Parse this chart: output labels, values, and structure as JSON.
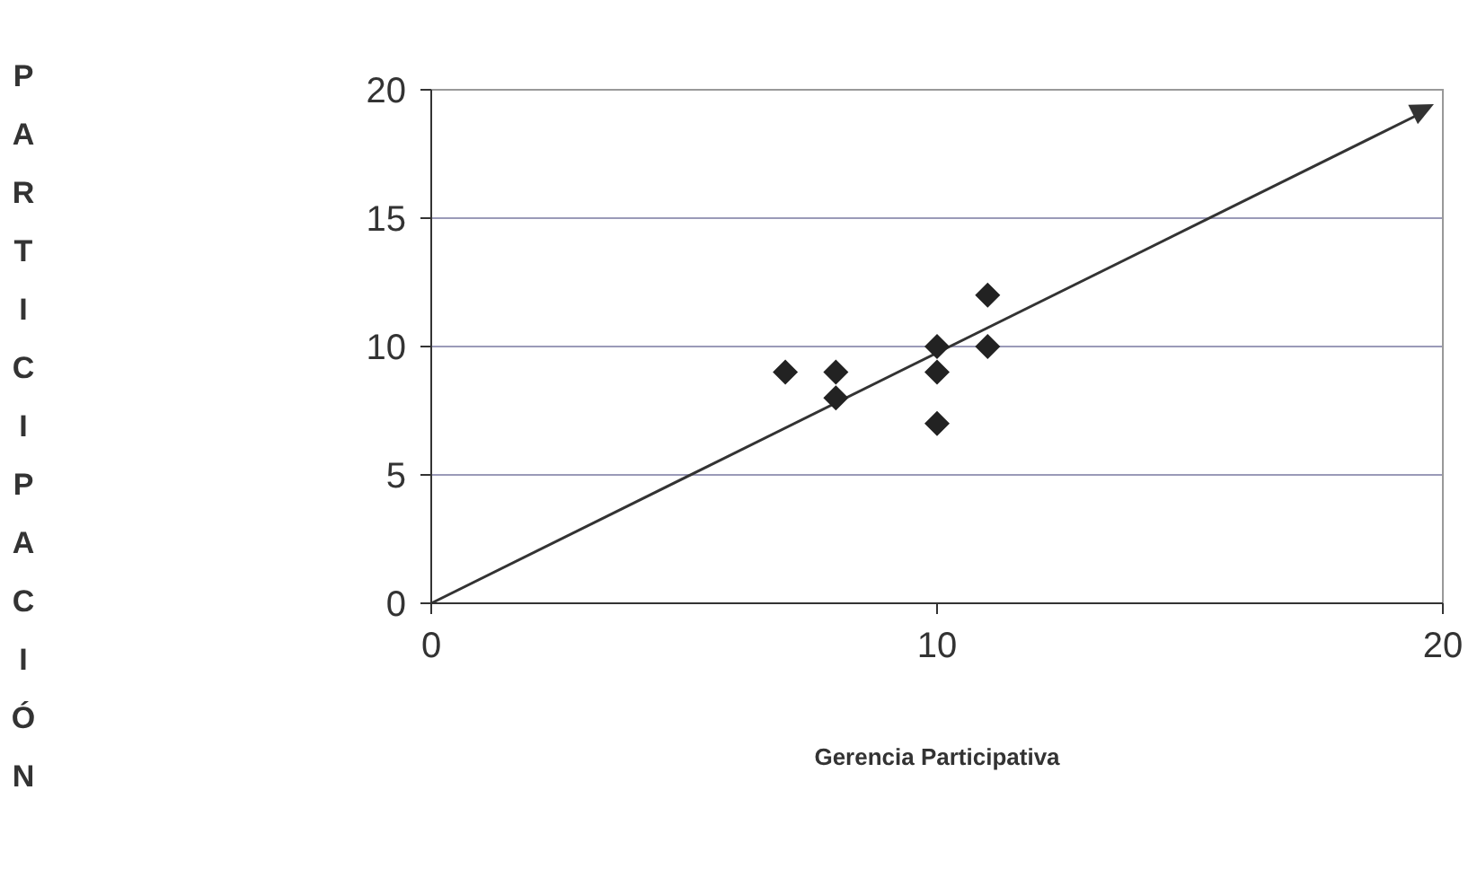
{
  "chart_data": {
    "type": "scatter",
    "xlabel": "Gerencia Participativa",
    "ylabel": "PARTICIPACIÓN",
    "xlim": [
      0,
      20
    ],
    "xticks": [
      0,
      10,
      20
    ],
    "ylim": [
      0,
      20
    ],
    "yticks": [
      0,
      5,
      10,
      15,
      20
    ],
    "grid": "y",
    "marker": "diamond",
    "series": [
      {
        "color": "#222222",
        "x": [
          7,
          8,
          8,
          10,
          10,
          10,
          11,
          11
        ],
        "values": [
          9,
          9,
          8,
          10,
          9,
          7,
          12,
          10
        ]
      }
    ]
  }
}
